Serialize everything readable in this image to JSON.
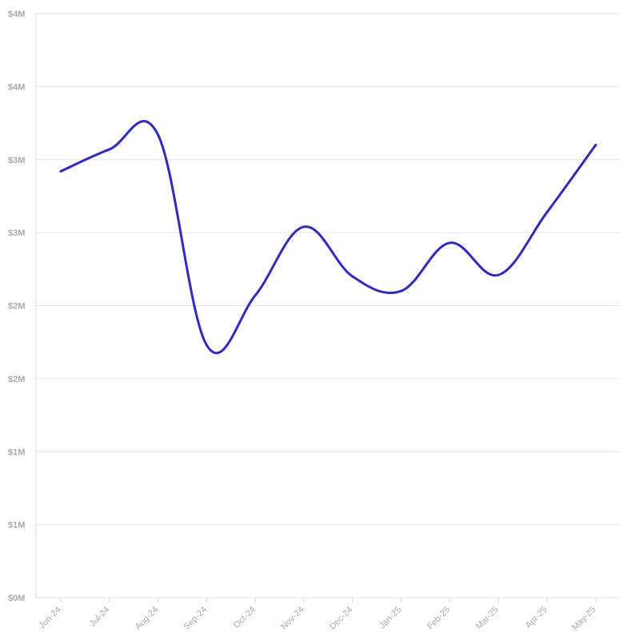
{
  "chart_data": {
    "type": "line",
    "title": "",
    "xlabel": "",
    "ylabel": "",
    "categories": [
      "Jun-24",
      "Jul-24",
      "Aug-24",
      "Sep-24",
      "Oct-24",
      "Nov-24",
      "Dec-24",
      "Jan-25",
      "Feb-25",
      "Mar-25",
      "Apr-25",
      "May-25"
    ],
    "series": [
      {
        "values": [
          2.92,
          3.07,
          3.17,
          1.73,
          2.07,
          2.54,
          2.2,
          2.1,
          2.43,
          2.21,
          2.64,
          3.1
        ],
        "color": "#2f27d6"
      }
    ],
    "ylim": [
      0,
      4
    ],
    "y_ticks": [
      0,
      0.5,
      1,
      1.5,
      2,
      2.5,
      3,
      3.5,
      4
    ],
    "y_tick_labels": [
      "$0M",
      "$1M",
      "$1M",
      "$2M",
      "$2M",
      "$3M",
      "$3M",
      "$4M",
      "$4M"
    ],
    "grid": true,
    "legend": "none"
  }
}
